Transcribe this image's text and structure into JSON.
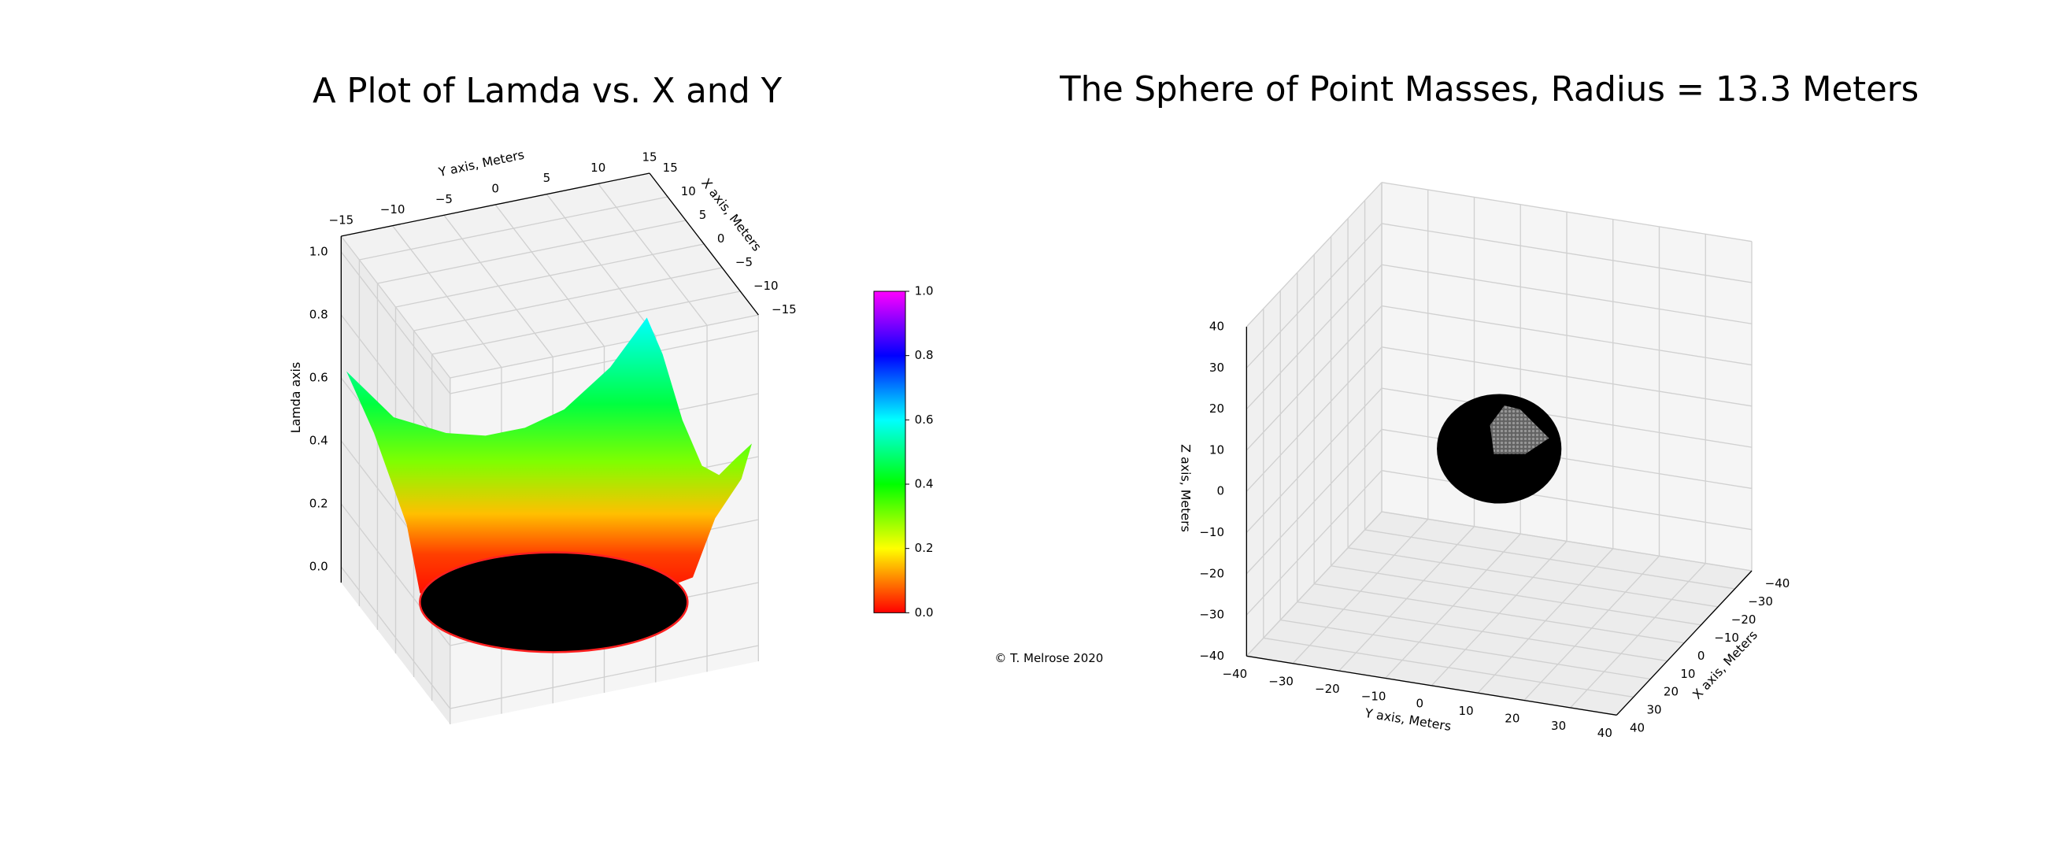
{
  "chart_data": [
    {
      "type": "surface3d",
      "title": "A Plot of Lamda vs. X and Y",
      "xlabel": "X axis, Meters",
      "ylabel": "Y axis, Meters",
      "zlabel": "Lamda axis",
      "xlim": [
        -15,
        15
      ],
      "ylim": [
        -15,
        15
      ],
      "zlim": [
        -0.05,
        1.05
      ],
      "xticks": [
        {
          "value": -15,
          "label": "−15"
        },
        {
          "value": -10,
          "label": "−10"
        },
        {
          "value": -5,
          "label": "−5"
        },
        0,
        5,
        10,
        15
      ],
      "yticks": [
        {
          "value": -15,
          "label": "−15"
        },
        {
          "value": -10,
          "label": "−10"
        },
        {
          "value": -5,
          "label": "−5"
        },
        0,
        5,
        10,
        15
      ],
      "zticks": [
        {
          "value": 0,
          "label": "0.0"
        },
        {
          "value": 0.2,
          "label": "0.2"
        },
        {
          "value": 0.4,
          "label": "0.4"
        },
        {
          "value": 0.6,
          "label": "0.6"
        },
        {
          "value": 0.8,
          "label": "0.8"
        },
        {
          "value": 1.0,
          "label": "1.0"
        }
      ],
      "grid": true,
      "colormap": "hsv",
      "colorbar": {
        "lim": [
          0,
          1
        ],
        "ticks": [
          {
            "value": 0,
            "label": "0.0"
          },
          {
            "value": 0.2,
            "label": "0.2"
          },
          {
            "value": 0.4,
            "label": "0.4"
          },
          {
            "value": 0.6,
            "label": "0.6"
          },
          {
            "value": 0.8,
            "label": "0.8"
          },
          {
            "value": 1.0,
            "label": "1.0"
          }
        ]
      }
    },
    {
      "type": "scatter3d",
      "title": "The Sphere of Point Masses, Radius = 13.3 Meters",
      "xlabel": "X axis, Meters",
      "ylabel": "Y axis, Meters",
      "zlabel": "Z axis, Meters",
      "radius": 13.3,
      "color": "#000000",
      "xlim": [
        -40,
        40
      ],
      "ylim": [
        -40,
        40
      ],
      "zlim": [
        -40,
        40
      ],
      "xticks": [
        {
          "value": -40,
          "label": "−40"
        },
        {
          "value": -30,
          "label": "−30"
        },
        {
          "value": -20,
          "label": "−20"
        },
        {
          "value": -10,
          "label": "−10"
        },
        0,
        10,
        20,
        30,
        40
      ],
      "yticks": [
        {
          "value": -40,
          "label": "−40"
        },
        {
          "value": -30,
          "label": "−30"
        },
        {
          "value": -20,
          "label": "−20"
        },
        {
          "value": -10,
          "label": "−10"
        },
        0,
        10,
        20,
        30,
        40
      ],
      "zticks": [
        {
          "value": -40,
          "label": "−40"
        },
        {
          "value": -30,
          "label": "−30"
        },
        {
          "value": -20,
          "label": "−20"
        },
        {
          "value": -10,
          "label": "−10"
        },
        0,
        10,
        20,
        30,
        40
      ],
      "grid": true
    }
  ],
  "footer": "© T. Melrose 2020"
}
